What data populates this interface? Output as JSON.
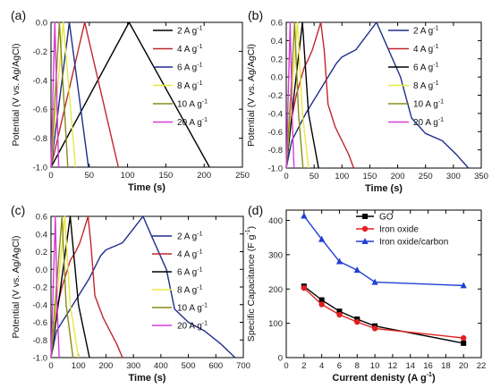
{
  "chart_data": [
    {
      "panel": "(a)",
      "type": "line",
      "xlabel": "Time (s)",
      "ylabel": "Potential (V vs. Ag/AgCl)",
      "xlim": [
        0,
        250
      ],
      "ylim": [
        -1.0,
        0.0
      ],
      "xticks": [
        0,
        50,
        100,
        150,
        200,
        250
      ],
      "yticks": [
        -1.0,
        -0.8,
        -0.6,
        -0.4,
        -0.2,
        0.0
      ],
      "legend_position": "top-right",
      "series": [
        {
          "name": "2 A g",
          "sup": "-1",
          "color": "#000000",
          "x": [
            0,
            102,
            207
          ],
          "y": [
            -1.0,
            0.0,
            -1.0
          ]
        },
        {
          "name": "4 A g",
          "sup": "-1",
          "color": "#c0262b",
          "x": [
            0,
            44,
            88
          ],
          "y": [
            -1.0,
            0.0,
            -1.0
          ]
        },
        {
          "name": "6 A g",
          "sup": "-1",
          "color": "#1f2d8c",
          "x": [
            0,
            24,
            49
          ],
          "y": [
            -1.0,
            0.0,
            -1.0
          ]
        },
        {
          "name": "8 A g",
          "sup": "-1",
          "color": "#e8e840",
          "x": [
            0,
            16,
            32
          ],
          "y": [
            -1.0,
            0.0,
            -1.0
          ]
        },
        {
          "name": "10 A g",
          "sup": "-1",
          "color": "#8a8a1a",
          "x": [
            0,
            11,
            22
          ],
          "y": [
            -1.0,
            0.0,
            -1.0
          ]
        },
        {
          "name": "20 A g",
          "sup": "-1",
          "color": "#d63ad6",
          "x": [
            0,
            5,
            10
          ],
          "y": [
            -1.0,
            0.0,
            -1.0
          ]
        }
      ]
    },
    {
      "panel": "(b)",
      "type": "line",
      "xlabel": "Time (s)",
      "ylabel": "Potential (V vs. Ag/AgCl)",
      "xlim": [
        0,
        350
      ],
      "ylim": [
        -1.0,
        0.6
      ],
      "xticks": [
        0,
        50,
        100,
        150,
        200,
        250,
        300,
        350
      ],
      "yticks": [
        -1.0,
        -0.8,
        -0.6,
        -0.4,
        -0.2,
        0.0,
        0.2,
        0.4,
        0.6
      ],
      "legend_position": "top-right",
      "series": [
        {
          "name": "2 A g",
          "sup": "-1",
          "color": "#1f2d8c",
          "x": [
            0,
            10,
            35,
            65,
            90,
            100,
            125,
            162,
            180,
            205,
            225,
            250,
            280,
            305,
            327
          ],
          "y": [
            -1.0,
            -0.7,
            -0.4,
            -0.1,
            0.15,
            0.22,
            0.3,
            0.6,
            0.35,
            0.0,
            -0.45,
            -0.62,
            -0.7,
            -0.85,
            -1.0
          ]
        },
        {
          "name": "4 A g",
          "sup": "-1",
          "color": "#c0262b",
          "x": [
            0,
            5,
            18,
            32,
            40,
            47,
            62,
            68,
            75,
            88,
            100,
            112,
            121
          ],
          "y": [
            -1.0,
            -0.6,
            -0.2,
            0.1,
            0.2,
            0.3,
            0.6,
            0.3,
            -0.3,
            -0.55,
            -0.7,
            -0.85,
            -1.0
          ]
        },
        {
          "name": "6 A g",
          "sup": "-1",
          "color": "#000000",
          "x": [
            0,
            14,
            29,
            40,
            58
          ],
          "y": [
            -1.0,
            -0.2,
            0.6,
            -0.4,
            -1.0
          ]
        },
        {
          "name": "8 A g",
          "sup": "-1",
          "color": "#e8e840",
          "x": [
            0,
            10,
            20,
            29,
            40
          ],
          "y": [
            -1.0,
            -0.2,
            0.6,
            -0.4,
            -1.0
          ]
        },
        {
          "name": "10 A g",
          "sup": "-1",
          "color": "#8a8a1a",
          "x": [
            0,
            8,
            15,
            22,
            30
          ],
          "y": [
            -1.0,
            -0.2,
            0.6,
            -0.4,
            -1.0
          ]
        },
        {
          "name": "20 A g",
          "sup": "-1",
          "color": "#d63ad6",
          "x": [
            0,
            3.5,
            7,
            10.5,
            14
          ],
          "y": [
            -1.0,
            -0.2,
            0.6,
            -0.4,
            -1.0
          ]
        }
      ]
    },
    {
      "panel": "(c)",
      "type": "line",
      "xlabel": "Time (s)",
      "ylabel": "Potential (V vs. Ag/AgCl)",
      "xlim": [
        0,
        700
      ],
      "ylim": [
        -1.0,
        0.6
      ],
      "xticks": [
        0,
        100,
        200,
        300,
        400,
        500,
        600,
        700
      ],
      "yticks": [
        -1.0,
        -0.8,
        -0.6,
        -0.4,
        -0.2,
        0.0,
        0.2,
        0.4,
        0.6
      ],
      "legend_position": "top-right",
      "series": [
        {
          "name": "2 A g",
          "sup": "-1",
          "color": "#1f2d8c",
          "x": [
            0,
            20,
            80,
            140,
            180,
            200,
            260,
            335,
            370,
            420,
            450,
            500,
            560,
            620,
            670
          ],
          "y": [
            -1.0,
            -0.7,
            -0.4,
            -0.1,
            0.15,
            0.22,
            0.3,
            0.6,
            0.35,
            0.0,
            -0.45,
            -0.6,
            -0.7,
            -0.85,
            -1.0
          ]
        },
        {
          "name": "4 A g",
          "sup": "-1",
          "color": "#c0262b",
          "x": [
            0,
            10,
            40,
            70,
            90,
            105,
            135,
            145,
            160,
            190,
            215,
            240,
            260
          ],
          "y": [
            -1.0,
            -0.6,
            -0.2,
            0.1,
            0.2,
            0.3,
            0.6,
            0.3,
            -0.3,
            -0.55,
            -0.7,
            -0.85,
            -1.0
          ]
        },
        {
          "name": "6 A g",
          "sup": "-1",
          "color": "#000000",
          "x": [
            0,
            35,
            70,
            100,
            140
          ],
          "y": [
            -1.0,
            -0.2,
            0.6,
            -0.4,
            -1.0
          ]
        },
        {
          "name": "8 A g",
          "sup": "-1",
          "color": "#e8e840",
          "x": [
            0,
            25,
            50,
            70,
            100
          ],
          "y": [
            -1.0,
            -0.2,
            0.6,
            -0.4,
            -1.0
          ]
        },
        {
          "name": "10 A g",
          "sup": "-1",
          "color": "#8a8a1a",
          "x": [
            0,
            20,
            40,
            55,
            80
          ],
          "y": [
            -1.0,
            -0.2,
            0.6,
            -0.4,
            -1.0
          ]
        },
        {
          "name": "20 A g",
          "sup": "-1",
          "color": "#d63ad6",
          "x": [
            0,
            8,
            16,
            22,
            30
          ],
          "y": [
            -1.0,
            -0.2,
            0.6,
            -0.4,
            -1.0
          ]
        }
      ]
    },
    {
      "panel": "(d)",
      "type": "line",
      "xlabel": "Current denisty (A g",
      "xlabel_sup": "-1",
      "xlabel_end": ")",
      "ylabel": "Specific Capacitance (F g",
      "ylabel_sup": "-1",
      "ylabel_end": ")",
      "xlim": [
        0,
        22
      ],
      "ylim": [
        0,
        430
      ],
      "xticks": [
        0,
        2,
        4,
        6,
        8,
        10,
        12,
        14,
        16,
        18,
        20,
        22
      ],
      "yticks": [
        0,
        100,
        200,
        300,
        400
      ],
      "legend_position": "top-right",
      "categories": [
        2,
        4,
        6,
        8,
        10,
        20
      ],
      "series": [
        {
          "name": "GO",
          "color": "#000000",
          "marker": "square",
          "values": [
            208,
            168,
            135,
            112,
            92,
            42
          ]
        },
        {
          "name": "Iron oxide",
          "color": "#e0201e",
          "marker": "circle",
          "values": [
            203,
            155,
            125,
            104,
            85,
            57
          ]
        },
        {
          "name": "Iron oxide/carbon",
          "color": "#1f3fd6",
          "marker": "triangle",
          "values": [
            413,
            345,
            280,
            255,
            220,
            210
          ]
        }
      ]
    }
  ]
}
